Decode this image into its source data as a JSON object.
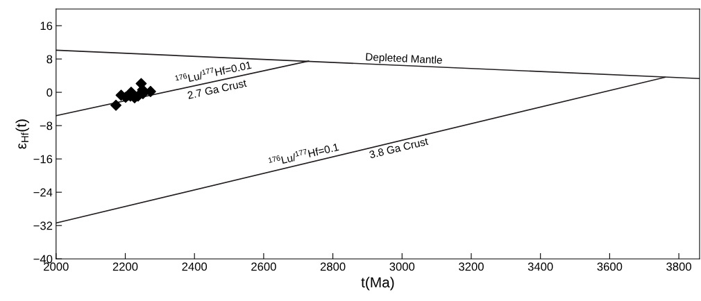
{
  "chart_data": {
    "type": "line",
    "xlabel": "t(Ma)",
    "ylabel": "ε$_{Hf}$(t)",
    "xlim": [
      2000,
      3860
    ],
    "ylim": [
      -40,
      20
    ],
    "xticks": [
      2000,
      2200,
      2400,
      2600,
      2800,
      3000,
      3200,
      3400,
      3600,
      3800
    ],
    "yticks": [
      -40,
      -32,
      -24,
      -16,
      -8,
      0,
      8,
      16
    ],
    "series": [
      {
        "color": "#231f20",
        "x": [
          2000,
          3860
        ],
        "values": [
          10.1,
          3.3
        ]
      },
      {
        "color": "#231f20",
        "x": [
          2000,
          2730
        ],
        "values": [
          -5.6,
          7.5
        ]
      },
      {
        "color": "#231f20",
        "x": [
          2000,
          3760
        ],
        "values": [
          -31.4,
          3.6
        ]
      },
      {
        "type": "scatter",
        "color": "#000000",
        "marker": "diamond",
        "x": [
          2173,
          2188,
          2201,
          2217,
          2215,
          2227,
          2237,
          2246,
          2250,
          2251,
          2273
        ],
        "values": [
          -3.1,
          -0.7,
          -1.2,
          0.0,
          -0.9,
          -1.3,
          -0.9,
          2.1,
          0.6,
          -0.3,
          0.2
        ]
      }
    ],
    "annotations": [
      "Depleted Mantle",
      "$^{176}$Lu/$^{177}$Hf=0.01",
      "2.7 Ga Crust",
      "$^{176}$Lu/$^{177}$Hf=0.1",
      "3.8 Ga Crust"
    ]
  }
}
